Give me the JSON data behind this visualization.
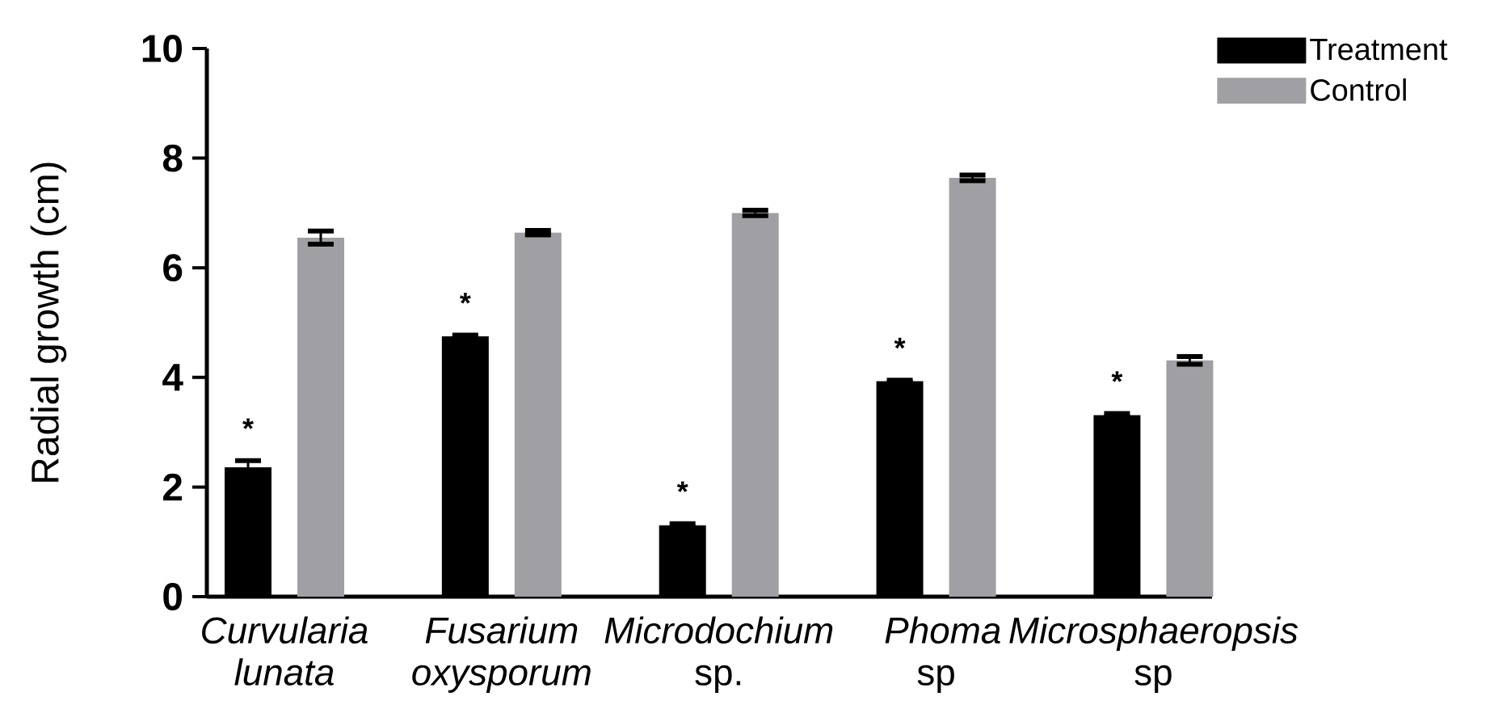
{
  "chart_data": {
    "type": "bar",
    "ylabel": "Radial growth (cm)",
    "categories": [
      "*Curvularia lunata*",
      "*Fusarium oxysporum*",
      "*Microdochium* sp.",
      "*Phoma* sp",
      "*Microsphaeropsis* sp"
    ],
    "series": [
      {
        "name": "Treatment",
        "color": "#000000",
        "values": [
          2.36,
          4.75,
          1.3,
          3.93,
          3.31
        ],
        "errors": [
          0.12,
          0.02,
          0.03,
          0.02,
          0.03
        ]
      },
      {
        "name": "Control",
        "color": "#a0a0a4",
        "values": [
          6.55,
          6.64,
          7.0,
          7.64,
          4.31
        ],
        "errors": [
          0.12,
          0.04,
          0.05,
          0.05,
          0.07
        ]
      }
    ],
    "ylim": [
      0,
      10
    ],
    "yticks": [
      0,
      2,
      4,
      6,
      8,
      10
    ],
    "legend": "top right",
    "annotations": [
      "*",
      "*",
      "*",
      "*",
      "*"
    ]
  }
}
